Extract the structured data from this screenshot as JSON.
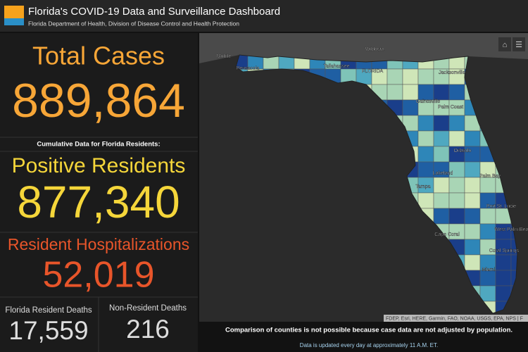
{
  "header": {
    "title": "Florida's COVID-19 Data and Surveillance Dashboard",
    "subtitle": "Florida Department of Health, Division of Disease Control and Health Protection"
  },
  "stats": {
    "total_cases_label": "Total Cases",
    "total_cases": "889,864",
    "cumulative_note": "Cumulative Data for Florida Residents:",
    "positive_residents_label": "Positive Residents",
    "positive_residents": "877,340",
    "hospitalizations_label": "Resident Hospitalizations",
    "hospitalizations": "52,019",
    "resident_deaths_label": "Florida Resident Deaths",
    "resident_deaths": "17,559",
    "non_resident_deaths_label": "Non-Resident Deaths",
    "non_resident_deaths": "216"
  },
  "map": {
    "labels": [
      "Mobile",
      "Valdosta",
      "Pensacola",
      "Tallahassee",
      "FLORIDA",
      "Jacksonville",
      "Gainesville",
      "Palm Coast",
      "Orlando",
      "Lakeland",
      "Tampa",
      "Palm Bay",
      "Port St. Lucie",
      "West Palm Beach",
      "Coral Springs",
      "Cape Coral",
      "Miami"
    ],
    "attribution": "FDEP, Esri, HERE, Garmin, FAO, NOAA, USGS, EPA, NPS | F"
  },
  "footer": {
    "note": "Comparison of counties is not possible because case data are not adjusted by population.",
    "update": "Data is updated every day at approximately 11 A.M. ET."
  }
}
